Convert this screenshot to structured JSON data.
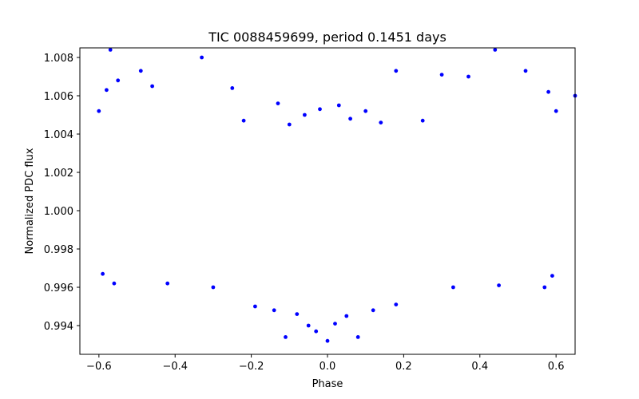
{
  "chart_data": {
    "type": "scatter",
    "title": "TIC 0088459699, period 0.1451 days",
    "xlabel": "Phase",
    "ylabel": "Normalized PDC flux",
    "xlim": [
      -0.65,
      0.65
    ],
    "ylim": [
      0.9925,
      1.0085
    ],
    "xticks": [
      -0.6,
      -0.4,
      -0.2,
      0.0,
      0.2,
      0.4,
      0.6
    ],
    "xtick_labels": [
      "−0.6",
      "−0.4",
      "−0.2",
      "0.0",
      "0.2",
      "0.4",
      "0.6"
    ],
    "yticks": [
      0.994,
      0.996,
      0.998,
      1.0,
      1.002,
      1.004,
      1.006,
      1.008
    ],
    "ytick_labels": [
      "0.994",
      "0.996",
      "0.998",
      "1.000",
      "1.002",
      "1.004",
      "1.006",
      "1.008"
    ],
    "grid": false,
    "series": [
      {
        "color": "#0000ff",
        "points": [
          [
            -0.57,
            1.0084
          ],
          [
            -0.33,
            1.008
          ],
          [
            0.44,
            1.0084
          ],
          [
            0.18,
            1.0073
          ],
          [
            0.52,
            1.0073
          ],
          [
            -0.49,
            1.0073
          ],
          [
            0.3,
            1.0071
          ],
          [
            0.37,
            1.007
          ],
          [
            -0.55,
            1.0068
          ],
          [
            -0.46,
            1.0065
          ],
          [
            -0.25,
            1.0064
          ],
          [
            -0.13,
            1.0056
          ],
          [
            0.65,
            1.006
          ],
          [
            0.03,
            1.0055
          ],
          [
            -0.02,
            1.0053
          ],
          [
            0.1,
            1.0052
          ],
          [
            -0.6,
            1.0052
          ],
          [
            0.6,
            1.0052
          ],
          [
            -0.58,
            1.0063
          ],
          [
            0.58,
            1.0062
          ],
          [
            -0.11,
            0.9934
          ],
          [
            0.08,
            0.9934
          ],
          [
            0.0,
            0.9932
          ],
          [
            -0.05,
            0.994
          ],
          [
            -0.03,
            0.9937
          ],
          [
            0.02,
            0.9941
          ],
          [
            -0.08,
            0.9946
          ],
          [
            0.05,
            0.9945
          ],
          [
            -0.14,
            0.9948
          ],
          [
            0.12,
            0.9948
          ],
          [
            -0.19,
            0.995
          ],
          [
            0.18,
            0.9951
          ],
          [
            -0.56,
            0.9962
          ],
          [
            0.57,
            0.996
          ],
          [
            -0.59,
            0.9967
          ],
          [
            0.59,
            0.9966
          ],
          [
            -0.42,
            0.9962
          ],
          [
            0.45,
            0.9961
          ],
          [
            -0.3,
            0.996
          ],
          [
            0.33,
            0.996
          ],
          [
            -0.06,
            1.005
          ],
          [
            0.06,
            1.0048
          ],
          [
            -0.1,
            1.0045
          ],
          [
            0.14,
            1.0046
          ],
          [
            -0.22,
            1.0047
          ],
          [
            0.25,
            1.0047
          ]
        ]
      }
    ]
  }
}
